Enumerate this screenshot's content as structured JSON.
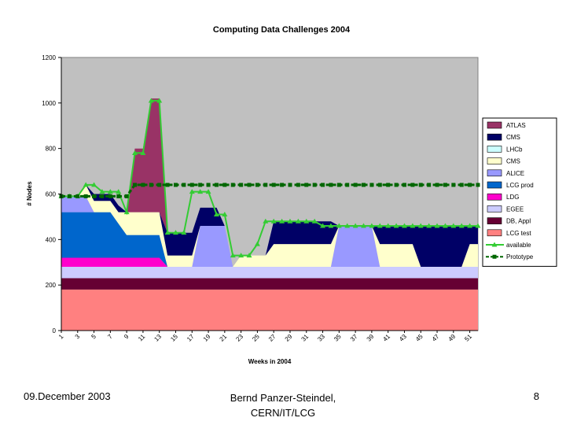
{
  "chart_data": {
    "type": "area",
    "title": "Computing Data Challenges 2004",
    "xlabel": "Weeks in 2004",
    "ylabel": "# Nodes",
    "ylim": [
      0,
      1200
    ],
    "yticks": [
      0,
      200,
      400,
      600,
      800,
      1000,
      1200
    ],
    "xticks": [
      "1",
      "3",
      "5",
      "7",
      "9",
      "11",
      "13",
      "15",
      "17",
      "19",
      "21",
      "23",
      "25",
      "27",
      "29",
      "31",
      "33",
      "35",
      "37",
      "39",
      "41",
      "43",
      "45",
      "47",
      "49",
      "51"
    ],
    "x": [
      1,
      2,
      3,
      4,
      5,
      6,
      7,
      8,
      9,
      10,
      11,
      12,
      13,
      14,
      15,
      16,
      17,
      18,
      19,
      20,
      21,
      22,
      23,
      24,
      25,
      26,
      27,
      28,
      29,
      30,
      31,
      32,
      33,
      34,
      35,
      36,
      37,
      38,
      39,
      40,
      41,
      42,
      43,
      44,
      45,
      46,
      47,
      48,
      49,
      50,
      51,
      52
    ],
    "grid": false,
    "legend_position": "right",
    "series": [
      {
        "name": "LCG test",
        "color": "#ff8080",
        "kind": "area",
        "values": [
          180,
          180,
          180,
          180,
          180,
          180,
          180,
          180,
          180,
          180,
          180,
          180,
          180,
          180,
          180,
          180,
          180,
          180,
          180,
          180,
          180,
          180,
          180,
          180,
          180,
          180,
          180,
          180,
          180,
          180,
          180,
          180,
          180,
          180,
          180,
          180,
          180,
          180,
          180,
          180,
          180,
          180,
          180,
          180,
          180,
          180,
          180,
          180,
          180,
          180,
          180,
          180
        ]
      },
      {
        "name": "DB, Appl",
        "color": "#660033",
        "kind": "area",
        "values": [
          50,
          50,
          50,
          50,
          50,
          50,
          50,
          50,
          50,
          50,
          50,
          50,
          50,
          50,
          50,
          50,
          50,
          50,
          50,
          50,
          50,
          50,
          50,
          50,
          50,
          50,
          50,
          50,
          50,
          50,
          50,
          50,
          50,
          50,
          50,
          50,
          50,
          50,
          50,
          50,
          50,
          50,
          50,
          50,
          50,
          50,
          50,
          50,
          50,
          50,
          50,
          50
        ]
      },
      {
        "name": "EGEE",
        "color": "#ccccff",
        "kind": "area",
        "values": [
          50,
          50,
          50,
          50,
          50,
          50,
          50,
          50,
          50,
          50,
          50,
          50,
          50,
          50,
          50,
          50,
          50,
          50,
          50,
          50,
          50,
          50,
          50,
          50,
          50,
          50,
          50,
          50,
          50,
          50,
          50,
          50,
          50,
          50,
          50,
          50,
          50,
          50,
          50,
          50,
          50,
          50,
          50,
          50,
          50,
          50,
          50,
          50,
          50,
          50,
          50,
          50
        ]
      },
      {
        "name": "LDG",
        "color": "#ff00cc",
        "kind": "area",
        "values": [
          40,
          40,
          40,
          40,
          40,
          40,
          40,
          40,
          40,
          40,
          40,
          40,
          40,
          0,
          0,
          0,
          0,
          0,
          0,
          0,
          0,
          0,
          0,
          0,
          0,
          0,
          0,
          0,
          0,
          0,
          0,
          0,
          0,
          0,
          0,
          0,
          0,
          0,
          0,
          0,
          0,
          0,
          0,
          0,
          0,
          0,
          0,
          0,
          0,
          0,
          0,
          0
        ]
      },
      {
        "name": "LCG prod",
        "color": "#0066cc",
        "kind": "area",
        "values": [
          200,
          200,
          200,
          200,
          200,
          200,
          200,
          150,
          100,
          100,
          100,
          100,
          100,
          0,
          0,
          0,
          0,
          0,
          0,
          0,
          0,
          0,
          0,
          0,
          0,
          0,
          0,
          0,
          0,
          0,
          0,
          0,
          0,
          0,
          0,
          0,
          0,
          0,
          0,
          0,
          0,
          0,
          0,
          0,
          0,
          0,
          0,
          0,
          0,
          0,
          0,
          0
        ]
      },
      {
        "name": "ALICE",
        "color": "#9999ff",
        "kind": "area",
        "values": [
          70,
          70,
          70,
          70,
          0,
          0,
          0,
          0,
          0,
          0,
          0,
          0,
          0,
          0,
          0,
          0,
          0,
          180,
          180,
          180,
          180,
          0,
          0,
          0,
          0,
          0,
          0,
          0,
          0,
          0,
          0,
          0,
          0,
          0,
          180,
          180,
          180,
          180,
          180,
          0,
          0,
          0,
          0,
          0,
          0,
          0,
          0,
          0,
          0,
          0,
          0,
          0
        ]
      },
      {
        "name": "CMS",
        "color": "#ffffcc",
        "kind": "area",
        "values": [
          0,
          0,
          0,
          50,
          50,
          50,
          50,
          50,
          100,
          100,
          100,
          100,
          100,
          50,
          50,
          50,
          50,
          0,
          0,
          0,
          0,
          0,
          50,
          50,
          50,
          50,
          100,
          100,
          100,
          100,
          100,
          100,
          100,
          100,
          0,
          0,
          0,
          0,
          0,
          100,
          100,
          100,
          100,
          100,
          0,
          0,
          0,
          0,
          0,
          0,
          100,
          100
        ]
      },
      {
        "name": "LHCb",
        "color": "#ccffff",
        "kind": "area",
        "values": [
          0,
          0,
          0,
          0,
          0,
          0,
          0,
          0,
          0,
          0,
          0,
          0,
          0,
          0,
          0,
          0,
          0,
          0,
          0,
          0,
          0,
          0,
          0,
          0,
          0,
          0,
          0,
          0,
          0,
          0,
          0,
          0,
          0,
          0,
          0,
          0,
          0,
          0,
          0,
          0,
          0,
          0,
          0,
          0,
          0,
          0,
          0,
          0,
          0,
          0,
          0,
          0
        ]
      },
      {
        "name": "CMS",
        "color": "#000066",
        "kind": "area",
        "values": [
          0,
          0,
          0,
          0,
          30,
          30,
          30,
          30,
          0,
          0,
          0,
          0,
          0,
          100,
          100,
          100,
          100,
          80,
          80,
          80,
          0,
          0,
          0,
          0,
          0,
          0,
          100,
          100,
          100,
          100,
          100,
          100,
          100,
          100,
          0,
          0,
          0,
          0,
          0,
          80,
          80,
          80,
          80,
          80,
          180,
          180,
          180,
          180,
          180,
          180,
          80,
          80
        ]
      },
      {
        "name": "ATLAS",
        "color": "#993366",
        "kind": "area",
        "values": [
          0,
          0,
          0,
          0,
          0,
          0,
          0,
          0,
          0,
          280,
          280,
          500,
          500,
          0,
          0,
          0,
          0,
          0,
          0,
          0,
          0,
          0,
          0,
          0,
          0,
          0,
          0,
          0,
          0,
          0,
          0,
          0,
          0,
          0,
          0,
          0,
          0,
          0,
          0,
          0,
          0,
          0,
          0,
          0,
          0,
          0,
          0,
          0,
          0,
          0,
          0,
          0
        ]
      },
      {
        "name": "available",
        "color": "#33cc33",
        "kind": "line",
        "marker": "triangle",
        "values": [
          590,
          590,
          590,
          640,
          640,
          610,
          610,
          610,
          520,
          780,
          780,
          1010,
          1010,
          430,
          430,
          430,
          610,
          610,
          610,
          510,
          510,
          330,
          330,
          330,
          380,
          480,
          480,
          480,
          480,
          480,
          480,
          480,
          460,
          460,
          460,
          460,
          460,
          460,
          460,
          460,
          460,
          460,
          460,
          460,
          460,
          460,
          460,
          460,
          460,
          460,
          460,
          460
        ]
      },
      {
        "name": "Prototype",
        "color": "#006600",
        "kind": "line",
        "marker": "square",
        "dashed": true,
        "values": [
          590,
          590,
          590,
          590,
          590,
          590,
          590,
          590,
          590,
          640,
          640,
          640,
          640,
          640,
          640,
          640,
          640,
          640,
          640,
          640,
          640,
          640,
          640,
          640,
          640,
          640,
          640,
          640,
          640,
          640,
          640,
          640,
          640,
          640,
          640,
          640,
          640,
          640,
          640,
          640,
          640,
          640,
          640,
          640,
          640,
          640,
          640,
          640,
          640,
          640,
          640,
          640
        ]
      }
    ],
    "legend": [
      {
        "label": "ATLAS",
        "color": "#993366",
        "kind": "box"
      },
      {
        "label": "CMS",
        "color": "#000066",
        "kind": "box"
      },
      {
        "label": "LHCb",
        "color": "#ccffff",
        "kind": "box"
      },
      {
        "label": "CMS",
        "color": "#ffffcc",
        "kind": "box"
      },
      {
        "label": "ALICE",
        "color": "#9999ff",
        "kind": "box"
      },
      {
        "label": "LCG prod",
        "color": "#0066cc",
        "kind": "box"
      },
      {
        "label": "LDG",
        "color": "#ff00cc",
        "kind": "box"
      },
      {
        "label": "EGEE",
        "color": "#ccccff",
        "kind": "box"
      },
      {
        "label": "DB, Appl",
        "color": "#660033",
        "kind": "box"
      },
      {
        "label": "LCG test",
        "color": "#ff8080",
        "kind": "box"
      },
      {
        "label": "available",
        "color": "#33cc33",
        "kind": "line-triangle"
      },
      {
        "label": "Prototype",
        "color": "#006600",
        "kind": "line-square"
      }
    ],
    "plot_background": "#c0c0c0"
  },
  "footer": {
    "date": "09.December 2003",
    "author_line1": "Bernd Panzer-Steindel,",
    "author_line2": "CERN/IT/LCG",
    "page_number": "8"
  }
}
